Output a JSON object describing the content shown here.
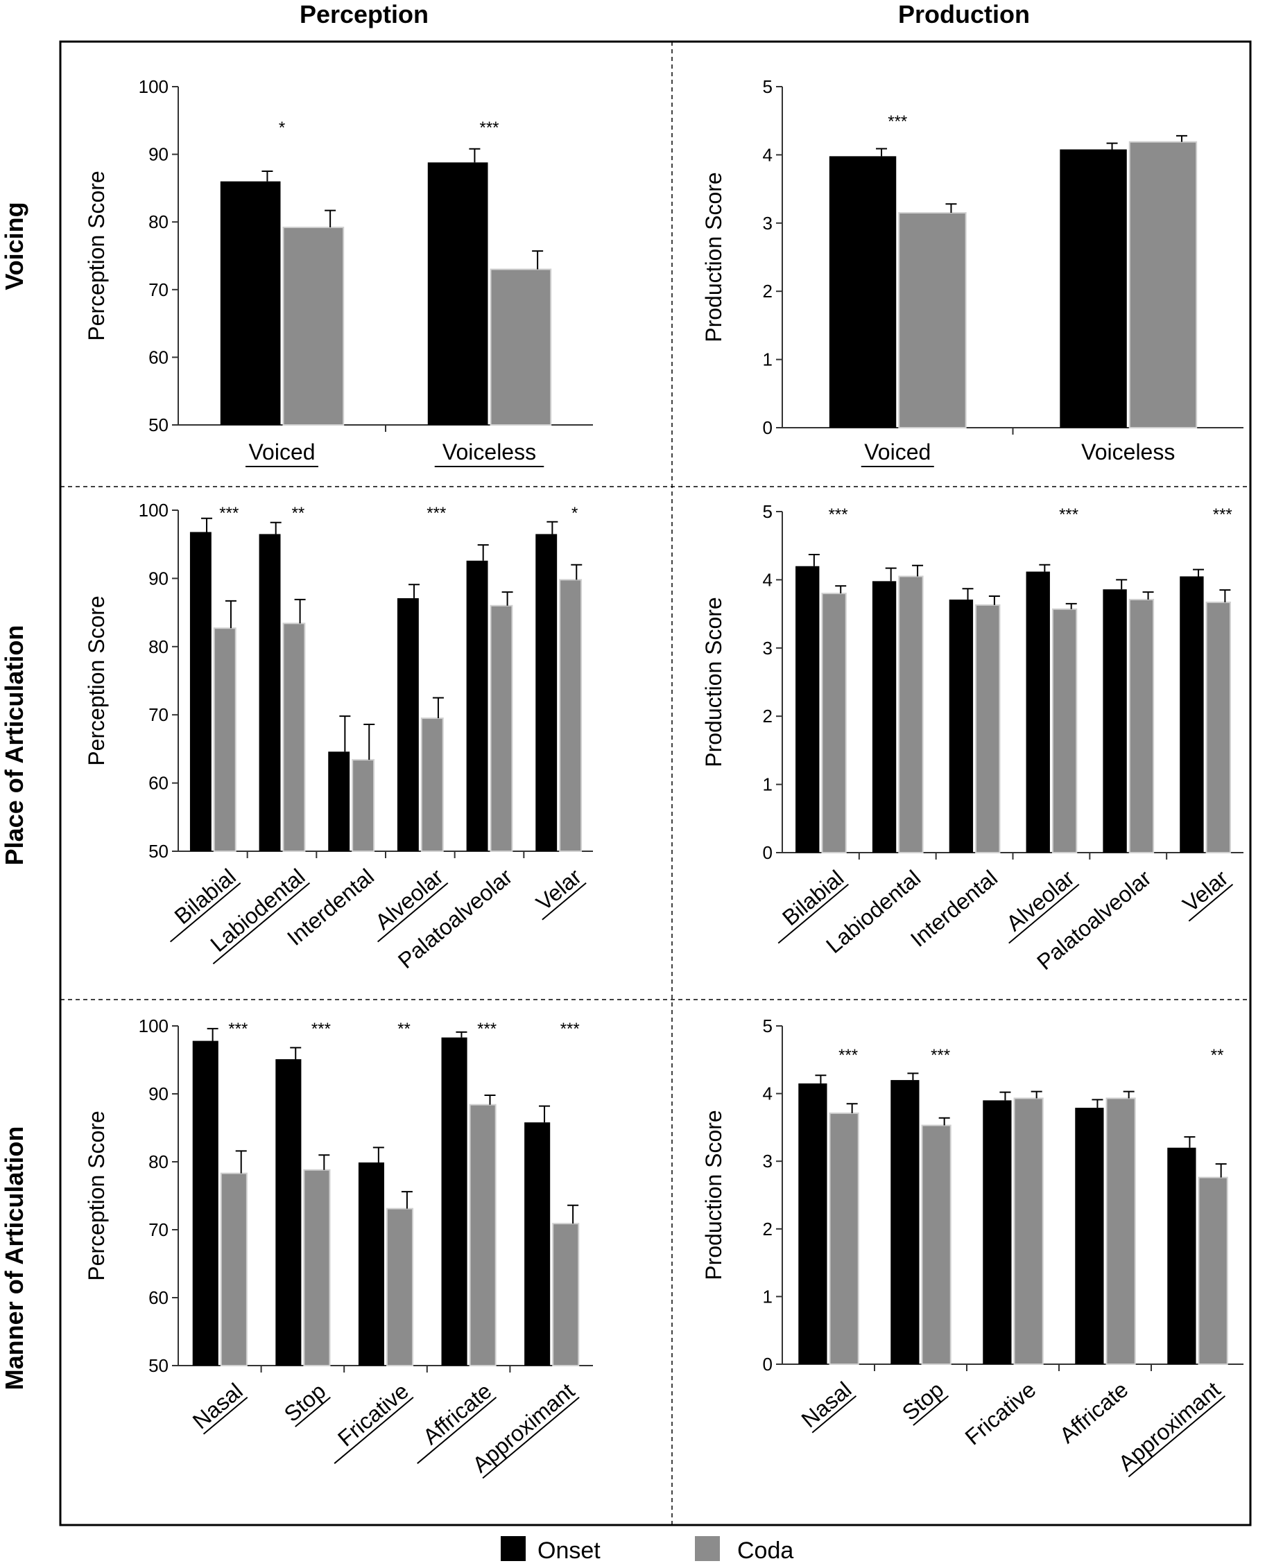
{
  "column_titles": [
    "Perception",
    "Production"
  ],
  "row_titles": [
    "Voicing",
    "Place of Articulation",
    "Manner of Articulation"
  ],
  "legend": [
    {
      "label": "Onset",
      "color": "#000000"
    },
    {
      "label": "Coda",
      "color": "#8c8c8c"
    }
  ],
  "colors": {
    "onset": "#000000",
    "coda": "#8c8c8c",
    "coda_edge": "#d0d0d0",
    "axis": "#333333"
  },
  "chart_data": [
    {
      "id": "voicing-perception",
      "type": "bar",
      "ylabel": "Perception Score",
      "ylim": [
        50,
        100
      ],
      "yticks": [
        50,
        60,
        70,
        80,
        90,
        100
      ],
      "categories": [
        "Voiced",
        "Voiceless"
      ],
      "underlined": [
        true,
        true
      ],
      "rotate_labels": false,
      "series": [
        {
          "name": "Onset",
          "values": [
            86,
            88.8
          ],
          "errors": [
            1.5,
            2
          ]
        },
        {
          "name": "Coda",
          "values": [
            79.2,
            73
          ],
          "errors": [
            2.5,
            2.7
          ]
        }
      ],
      "significance": [
        "*",
        "***"
      ]
    },
    {
      "id": "voicing-production",
      "type": "bar",
      "ylabel": "Production Score",
      "ylim": [
        0,
        5
      ],
      "yticks": [
        0,
        1,
        2,
        3,
        4,
        5
      ],
      "categories": [
        "Voiced",
        "Voiceless"
      ],
      "underlined": [
        true,
        false
      ],
      "rotate_labels": false,
      "series": [
        {
          "name": "Onset",
          "values": [
            3.98,
            4.08
          ],
          "errors": [
            0.11,
            0.09
          ]
        },
        {
          "name": "Coda",
          "values": [
            3.15,
            4.19
          ],
          "errors": [
            0.13,
            0.09
          ]
        }
      ],
      "significance": [
        "***",
        ""
      ]
    },
    {
      "id": "place-perception",
      "type": "bar",
      "ylabel": "Perception Score",
      "ylim": [
        50,
        100
      ],
      "yticks": [
        50,
        60,
        70,
        80,
        90,
        100
      ],
      "categories": [
        "Bilabial",
        "Labiodental",
        "Interdental",
        "Alveolar",
        "Palatoalveolar",
        "Velar"
      ],
      "underlined": [
        true,
        true,
        false,
        true,
        false,
        true
      ],
      "rotate_labels": true,
      "series": [
        {
          "name": "Onset",
          "values": [
            96.8,
            96.5,
            64.6,
            87.1,
            92.6,
            96.5
          ],
          "errors": [
            2,
            1.7,
            5.2,
            2,
            2.3,
            1.8
          ]
        },
        {
          "name": "Coda",
          "values": [
            82.7,
            83.4,
            63.4,
            69.5,
            86,
            89.8
          ],
          "errors": [
            4,
            3.5,
            5.2,
            3,
            2,
            2.2
          ]
        }
      ],
      "significance": [
        "***",
        "**",
        "",
        "***",
        "",
        "*"
      ]
    },
    {
      "id": "place-production",
      "type": "bar",
      "ylabel": "Production Score",
      "ylim": [
        0,
        5
      ],
      "yticks": [
        0,
        1,
        2,
        3,
        4,
        5
      ],
      "categories": [
        "Bilabial",
        "Labiodental",
        "Interdental",
        "Alveolar",
        "Palatoalveolar",
        "Velar"
      ],
      "underlined": [
        true,
        false,
        false,
        true,
        false,
        true
      ],
      "rotate_labels": true,
      "series": [
        {
          "name": "Onset",
          "values": [
            4.2,
            3.98,
            3.71,
            4.12,
            3.86,
            4.05
          ],
          "errors": [
            0.17,
            0.19,
            0.16,
            0.1,
            0.14,
            0.1
          ]
        },
        {
          "name": "Coda",
          "values": [
            3.8,
            4.05,
            3.63,
            3.57,
            3.71,
            3.67
          ],
          "errors": [
            0.11,
            0.16,
            0.13,
            0.08,
            0.11,
            0.18
          ]
        }
      ],
      "significance": [
        "***",
        "",
        "",
        "***",
        "",
        "***"
      ]
    },
    {
      "id": "manner-perception",
      "type": "bar",
      "ylabel": "Perception Score",
      "ylim": [
        50,
        100
      ],
      "yticks": [
        50,
        60,
        70,
        80,
        90,
        100
      ],
      "categories": [
        "Nasal",
        "Stop",
        "Fricative",
        "Affricate",
        "Approximant"
      ],
      "underlined": [
        true,
        true,
        true,
        true,
        true
      ],
      "rotate_labels": true,
      "series": [
        {
          "name": "Onset",
          "values": [
            97.8,
            95.1,
            79.9,
            98.3,
            85.8
          ],
          "errors": [
            1.8,
            1.7,
            2.2,
            0.8,
            2.4
          ]
        },
        {
          "name": "Coda",
          "values": [
            78.3,
            78.8,
            73.1,
            88.4,
            70.9
          ],
          "errors": [
            3.3,
            2.2,
            2.5,
            1.4,
            2.7
          ]
        }
      ],
      "significance": [
        "***",
        "***",
        "**",
        "***",
        "***"
      ]
    },
    {
      "id": "manner-production",
      "type": "bar",
      "ylabel": "Production Score",
      "ylim": [
        0,
        5
      ],
      "yticks": [
        0,
        1,
        2,
        3,
        4,
        5
      ],
      "categories": [
        "Nasal",
        "Stop",
        "Fricative",
        "Affricate",
        "Approximant"
      ],
      "underlined": [
        true,
        true,
        false,
        false,
        true
      ],
      "rotate_labels": true,
      "series": [
        {
          "name": "Onset",
          "values": [
            4.15,
            4.2,
            3.9,
            3.79,
            3.2
          ],
          "errors": [
            0.12,
            0.1,
            0.12,
            0.12,
            0.16
          ]
        },
        {
          "name": "Coda",
          "values": [
            3.71,
            3.53,
            3.93,
            3.93,
            2.76
          ],
          "errors": [
            0.14,
            0.11,
            0.1,
            0.1,
            0.2
          ]
        }
      ],
      "significance": [
        "***",
        "***",
        "",
        "",
        "**"
      ]
    }
  ]
}
